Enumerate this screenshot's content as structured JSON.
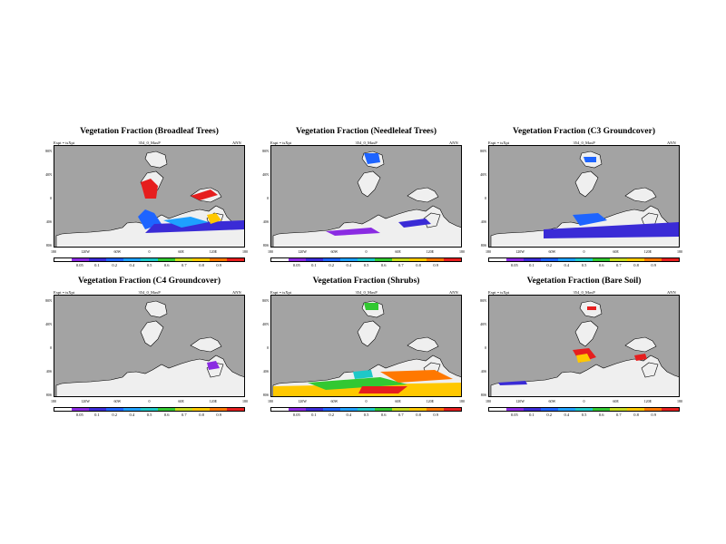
{
  "common": {
    "subtitle": "354_0_MaxP",
    "left_note": "Expt = tsXpt",
    "right_note": "ANN",
    "lat_labels": [
      "80N",
      "40N",
      "0",
      "40S",
      "80S"
    ],
    "lon_labels": [
      "180",
      "120W",
      "60W",
      "0",
      "60E",
      "120E",
      "180"
    ],
    "colorbar_labels": [
      "0.05",
      "0.1",
      "0.2",
      "0.4",
      "0.5",
      "0.6",
      "0.7",
      "0.8",
      "0.9"
    ],
    "colorbar_colors": [
      "#ffffff",
      "#8a2be2",
      "#3a2bd6",
      "#1e64ff",
      "#1ea0ff",
      "#1ec8c8",
      "#32c832",
      "#c8dc1e",
      "#ffc800",
      "#ff7800",
      "#e61e1e"
    ],
    "colors": {
      "ocean": "#a3a3a3",
      "land_low": "#efefef"
    }
  },
  "panels": [
    {
      "title": "Vegetation Fraction (Broadleaf Trees)"
    },
    {
      "title": "Vegetation Fraction (Needleleaf Trees)"
    },
    {
      "title": "Vegetation Fraction (C3 Groundcover)"
    },
    {
      "title": "Vegetation Fraction (C4 Groundcover)"
    },
    {
      "title": "Vegetation Fraction (Shrubs)"
    },
    {
      "title": "Vegetation Fraction (Bare Soil)"
    }
  ]
}
